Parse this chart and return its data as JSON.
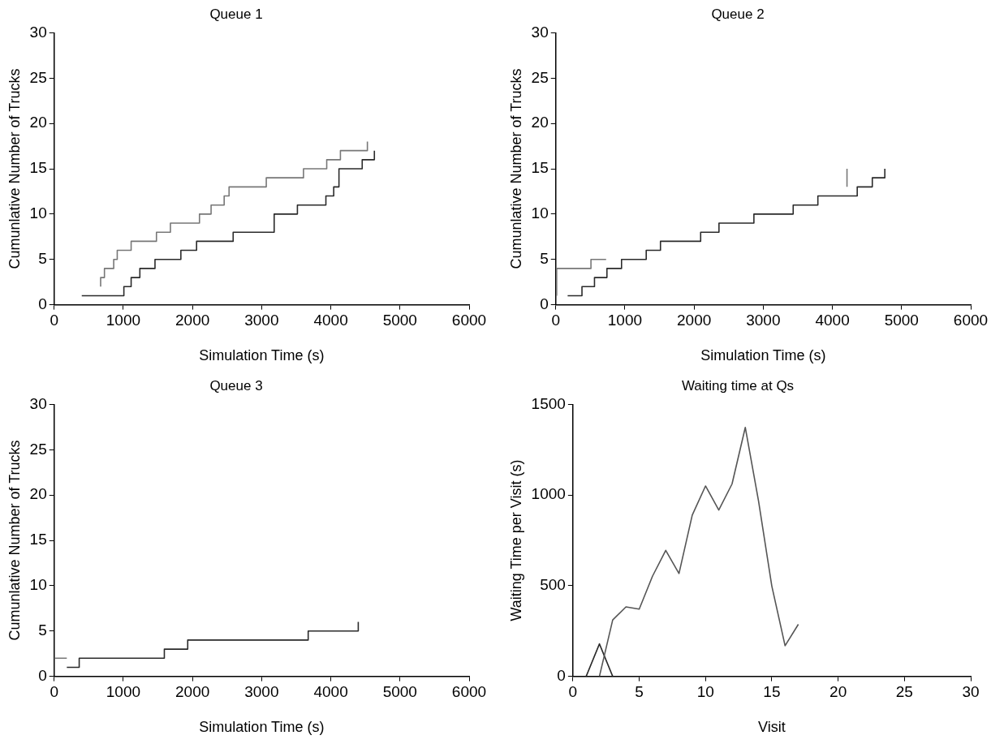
{
  "chart_data": [
    {
      "type": "step",
      "title": "Queue 1",
      "xlabel": "Simulation Time (s)",
      "ylabel": "Cumunlative Number of Trucks",
      "xlim": [
        0,
        6000
      ],
      "xticks": [
        0,
        1000,
        2000,
        3000,
        4000,
        5000,
        6000
      ],
      "ylim": [
        0,
        30
      ],
      "yticks": [
        0,
        5,
        10,
        15,
        20,
        25,
        30
      ],
      "grid": false,
      "marker": "none",
      "series": [
        {
          "color": "#777777",
          "x": [
            672,
            672,
            727,
            861,
            912,
            1113,
            1479,
            1681,
            2101,
            2269,
            2458,
            2529,
            3067,
            3605,
            3941,
            4139,
            4529
          ],
          "values": [
            2,
            3,
            4,
            5,
            6,
            7,
            8,
            9,
            10,
            11,
            12,
            13,
            14,
            15,
            16,
            17,
            18
          ]
        },
        {
          "color": "#2a2a2a",
          "x": [
            399,
            1008,
            1113,
            1239,
            1458,
            1832,
            2059,
            2588,
            3181,
            3517,
            3929,
            4042,
            4118,
            4454,
            4630
          ],
          "values": [
            1,
            2,
            3,
            4,
            5,
            6,
            7,
            8,
            10,
            11,
            12,
            13,
            15,
            16,
            17
          ]
        }
      ]
    },
    {
      "type": "step",
      "title": "Queue 2",
      "xlabel": "Simulation Time (s)",
      "ylabel": "Cumunlative Number of Trucks",
      "xlim": [
        0,
        6000
      ],
      "xticks": [
        0,
        1000,
        2000,
        3000,
        4000,
        5000,
        6000
      ],
      "ylim": [
        0,
        30
      ],
      "yticks": [
        0,
        5,
        10,
        15,
        20,
        25,
        30
      ],
      "grid": false,
      "marker": "none",
      "series": [
        {
          "color": "#777777",
          "x": [
            13,
            13,
            509,
            728,
            4000,
            4211,
            4211
          ],
          "values": [
            1,
            4,
            5,
            5,
            null,
            13,
            15
          ]
        },
        {
          "color": "#2a2a2a",
          "x": [
            172,
            379,
            560,
            740,
            951,
            1308,
            1514,
            2095,
            2360,
            2865,
            3433,
            3790,
            4359,
            4577,
            4758
          ],
          "values": [
            1,
            2,
            3,
            4,
            5,
            6,
            7,
            8,
            9,
            10,
            11,
            12,
            13,
            14,
            15
          ]
        }
      ]
    },
    {
      "type": "step",
      "title": "Queue 3",
      "xlabel": "Simulation Time (s)",
      "ylabel": "Cumunlative Number of Trucks",
      "xlim": [
        0,
        6000
      ],
      "xticks": [
        0,
        1000,
        2000,
        3000,
        4000,
        5000,
        6000
      ],
      "ylim": [
        0,
        30
      ],
      "yticks": [
        0,
        5,
        10,
        15,
        20,
        25,
        30
      ],
      "grid": false,
      "marker": "none",
      "series": [
        {
          "color": "#777777",
          "x": [
            0,
            183
          ],
          "values": [
            2,
            2
          ]
        },
        {
          "color": "#2a2a2a",
          "x": [
            183,
            362,
            1593,
            1931,
            3673,
            4397
          ],
          "values": [
            1,
            2,
            3,
            4,
            5,
            6
          ]
        }
      ]
    },
    {
      "type": "line",
      "title": "Waiting time at Qs",
      "xlabel": "Visit",
      "ylabel": "Waiting Time per Visit (s)",
      "xlim": [
        0,
        30
      ],
      "xticks": [
        0,
        5,
        10,
        15,
        20,
        25,
        30
      ],
      "ylim": [
        0,
        1500
      ],
      "yticks": [
        0,
        500,
        1000,
        1500
      ],
      "grid": false,
      "marker": "none",
      "series": [
        {
          "color": "#555555",
          "x": [
            2,
            3,
            4,
            5,
            6,
            7,
            8,
            9,
            10,
            11,
            12,
            13,
            14,
            15,
            16,
            17
          ],
          "values": [
            0,
            311,
            383,
            371,
            552,
            695,
            567,
            889,
            1050,
            917,
            1061,
            1373,
            966,
            498,
            169,
            287
          ]
        },
        {
          "color": "#2a2a2a",
          "x": [
            1,
            2,
            3
          ],
          "values": [
            0,
            179,
            0
          ]
        }
      ]
    }
  ]
}
